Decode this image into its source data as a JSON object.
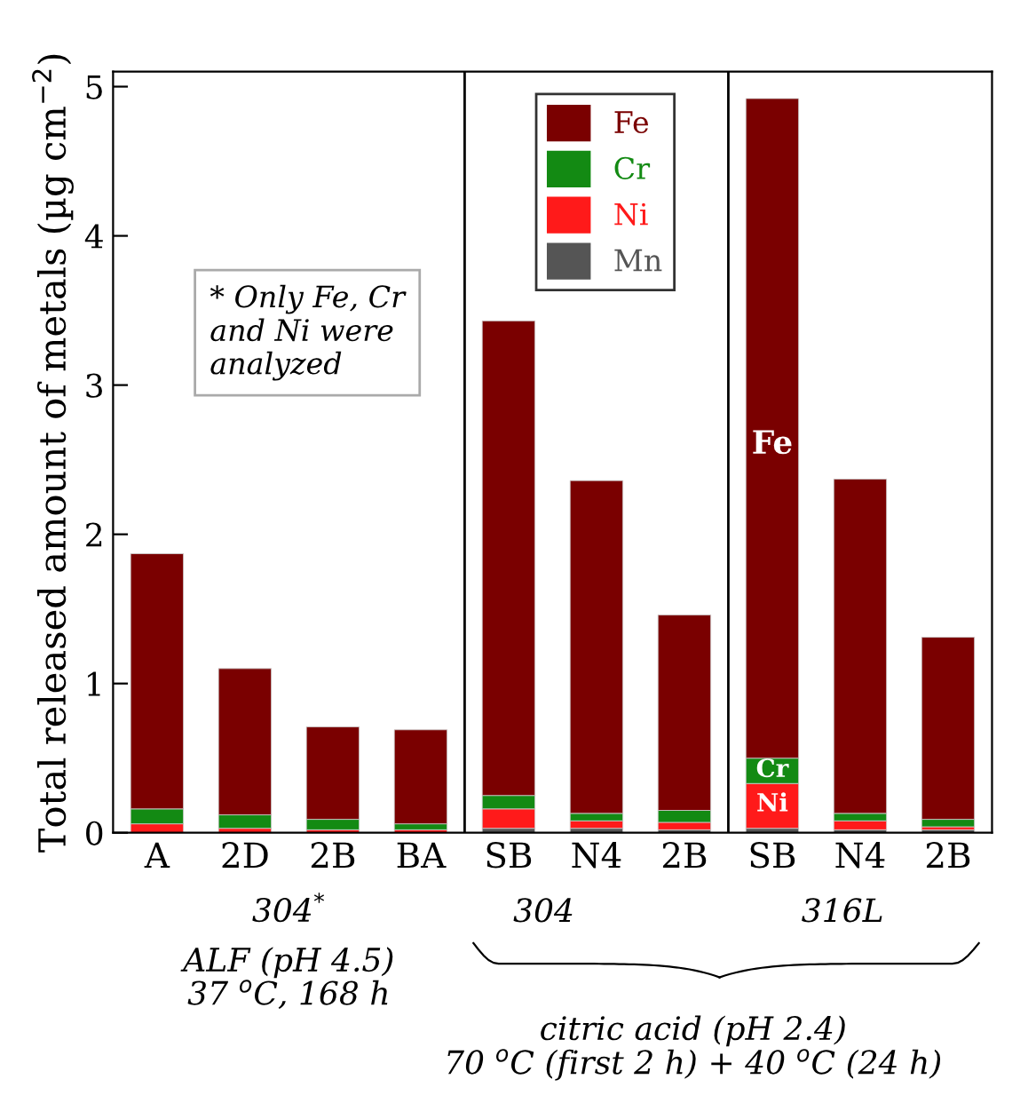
{
  "chart_data": {
    "type": "bar",
    "stacked": true,
    "ylabel": "Total released amount of metals (µg cm$^{−2}$)",
    "categories": [
      "A",
      "2D",
      "2B",
      "BA",
      "SB",
      "N4",
      "2B",
      "SB",
      "N4",
      "2B"
    ],
    "series": [
      {
        "name": "Mn",
        "color": "#555555",
        "values": [
          null,
          null,
          null,
          null,
          0.03,
          0.03,
          0.02,
          0.03,
          0.02,
          0.02
        ]
      },
      {
        "name": "Ni",
        "color": "#ff1a1a",
        "values": [
          0.06,
          0.03,
          0.02,
          0.02,
          0.13,
          0.05,
          0.05,
          0.3,
          0.06,
          0.02
        ]
      },
      {
        "name": "Cr",
        "color": "#138a13",
        "values": [
          0.1,
          0.09,
          0.07,
          0.04,
          0.09,
          0.05,
          0.08,
          0.17,
          0.05,
          0.05
        ]
      },
      {
        "name": "Fe",
        "color": "#7a0000",
        "values": [
          1.71,
          0.98,
          0.62,
          0.63,
          3.18,
          2.23,
          1.31,
          4.42,
          2.24,
          1.22
        ]
      }
    ],
    "ylim": [
      0,
      5.1
    ],
    "yticks": [
      0,
      1,
      2,
      3,
      4,
      5
    ],
    "legend": "top",
    "grid": false,
    "annotations": [
      "* Only Fe, Cr\nand Ni were\nanalyzed",
      "Fe",
      "Cr",
      "Ni",
      "304$^{*}$",
      "ALF (pH 4.5)\n37 $^{o}$C, 168 h",
      "304",
      "316L",
      "citric acid (pH 2.4)\n70 $^{o}$C (first 2 h) + 40 $^{o}$C (24 h)"
    ]
  }
}
